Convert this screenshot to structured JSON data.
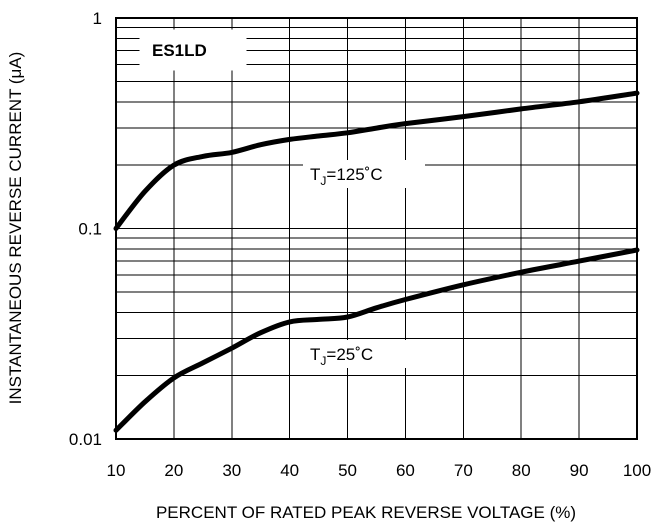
{
  "chart_data": {
    "type": "line",
    "title": "ES1LD",
    "xlabel": "PERCENT OF RATED PEAK REVERSE VOLTAGE (%)",
    "ylabel": "INSTANTANEOUS REVERSE CURRENT (μA)",
    "xlim": [
      10,
      100
    ],
    "ylim": [
      0.01,
      1
    ],
    "y_scale": "log",
    "grid": true,
    "x_ticks": [
      "10",
      "20",
      "30",
      "40",
      "50",
      "60",
      "70",
      "80",
      "90",
      "100"
    ],
    "y_ticks": [
      "0.01",
      "0.1",
      "1"
    ],
    "series": [
      {
        "name": "TJ=125°C",
        "label_main": "T",
        "label_sub": "J",
        "label_rest": "=125˚C",
        "x": [
          10,
          15,
          20,
          25,
          30,
          35,
          40,
          45,
          50,
          55,
          60,
          70,
          80,
          90,
          100
        ],
        "y": [
          0.1,
          0.15,
          0.2,
          0.22,
          0.23,
          0.25,
          0.265,
          0.275,
          0.285,
          0.3,
          0.315,
          0.34,
          0.37,
          0.4,
          0.44
        ]
      },
      {
        "name": "TJ=25°C",
        "label_main": "T",
        "label_sub": "J",
        "label_rest": "=25˚C",
        "x": [
          10,
          15,
          20,
          25,
          30,
          35,
          40,
          45,
          50,
          55,
          60,
          70,
          80,
          90,
          100
        ],
        "y": [
          0.011,
          0.015,
          0.0195,
          0.023,
          0.027,
          0.032,
          0.036,
          0.037,
          0.038,
          0.042,
          0.046,
          0.054,
          0.062,
          0.07,
          0.079
        ]
      }
    ]
  }
}
